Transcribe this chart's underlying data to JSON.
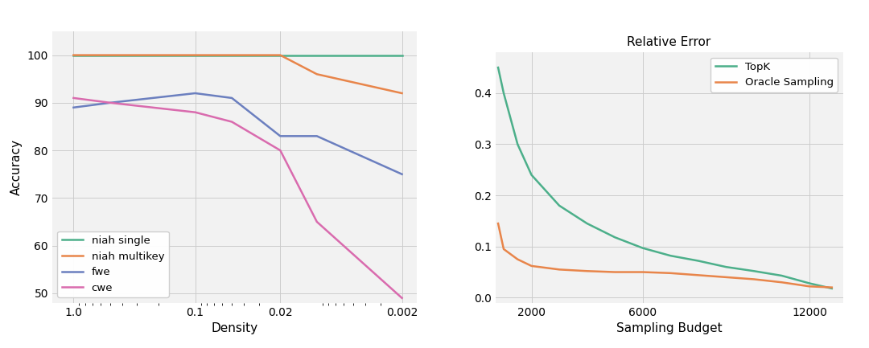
{
  "chart1": {
    "title": "",
    "xlabel": "Density",
    "ylabel": "Accuracy",
    "x_ticks": [
      1.0,
      0.1,
      0.02,
      0.002
    ],
    "x_tick_labels": [
      "1.0",
      "0.1",
      "0.02",
      "0.002"
    ],
    "ylim": [
      48,
      105
    ],
    "y_ticks": [
      50,
      60,
      70,
      80,
      90,
      100
    ],
    "series": {
      "niah single": {
        "x": [
          1.0,
          0.5,
          0.1,
          0.05,
          0.02,
          0.01,
          0.002
        ],
        "y": [
          100,
          100,
          100,
          100,
          100,
          100,
          100
        ],
        "color": "#4CAF8A"
      },
      "niah multikey": {
        "x": [
          1.0,
          0.5,
          0.1,
          0.05,
          0.02,
          0.01,
          0.002
        ],
        "y": [
          100,
          100,
          100,
          100,
          100,
          96,
          92
        ],
        "color": "#E8854A"
      },
      "fwe": {
        "x": [
          1.0,
          0.5,
          0.1,
          0.05,
          0.02,
          0.01,
          0.002
        ],
        "y": [
          89,
          90,
          92,
          91,
          83,
          83,
          75
        ],
        "color": "#6B7FBF"
      },
      "cwe": {
        "x": [
          1.0,
          0.5,
          0.1,
          0.05,
          0.02,
          0.01,
          0.002
        ],
        "y": [
          91,
          90,
          88,
          86,
          80,
          65,
          49
        ],
        "color": "#D96BAE"
      }
    },
    "legend_loc": "lower left",
    "background_color": "#f2f2f2"
  },
  "chart2": {
    "title": "Relative Error",
    "xlabel": "Sampling Budget",
    "ylabel": "",
    "ylim": [
      -0.01,
      0.48
    ],
    "y_ticks": [
      0.0,
      0.1,
      0.2,
      0.3,
      0.4
    ],
    "series": {
      "TopK": {
        "x": [
          800,
          1000,
          1500,
          2000,
          3000,
          4000,
          5000,
          6000,
          7000,
          8000,
          9000,
          10000,
          11000,
          12000,
          12800
        ],
        "y": [
          0.45,
          0.4,
          0.3,
          0.24,
          0.18,
          0.145,
          0.118,
          0.097,
          0.082,
          0.072,
          0.06,
          0.052,
          0.043,
          0.028,
          0.018
        ],
        "color": "#4CAF8A"
      },
      "Oracle Sampling": {
        "x": [
          800,
          1000,
          1500,
          2000,
          3000,
          4000,
          5000,
          6000,
          7000,
          8000,
          9000,
          10000,
          11000,
          12000,
          12800
        ],
        "y": [
          0.145,
          0.095,
          0.075,
          0.062,
          0.055,
          0.052,
          0.05,
          0.05,
          0.048,
          0.044,
          0.04,
          0.036,
          0.03,
          0.022,
          0.02
        ],
        "color": "#E8854A"
      }
    },
    "legend_loc": "upper right",
    "background_color": "#f2f2f2"
  },
  "fig_width": 10.8,
  "fig_height": 4.33,
  "fig_dpi": 100,
  "fig_bg": "#ffffff"
}
